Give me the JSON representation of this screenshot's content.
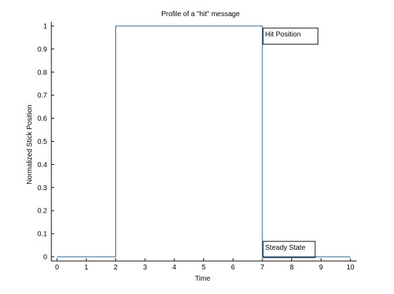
{
  "chart_data": {
    "type": "line",
    "title": "Profile of a \"hit\" message",
    "xlabel": "Time",
    "ylabel": "Normalized Stick Position",
    "xlim": [
      0,
      10
    ],
    "ylim": [
      0,
      1
    ],
    "x_ticks": [
      0,
      1,
      2,
      3,
      4,
      5,
      6,
      7,
      8,
      9,
      10
    ],
    "y_ticks": [
      0,
      0.1,
      0.2,
      0.3,
      0.4,
      0.5,
      0.6,
      0.7,
      0.8,
      0.9,
      1
    ],
    "x_tick_labels": [
      "0",
      "1",
      "2",
      "3",
      "4",
      "5",
      "6",
      "7",
      "8",
      "9",
      "10"
    ],
    "y_tick_labels": [
      "0",
      "0.1",
      "0.2",
      "0.3",
      "0.4",
      "0.5",
      "0.6",
      "0.7",
      "0.8",
      "0.9",
      "1"
    ],
    "grid": false,
    "series": [
      {
        "color": "#1f5b8f",
        "x": [
          0,
          2,
          2,
          7,
          7,
          10
        ],
        "y": [
          0,
          0,
          1,
          1,
          0,
          0
        ]
      }
    ],
    "annotations": [
      {
        "text": "Hit Position",
        "x": 7,
        "y": 1
      },
      {
        "text": "Steady State",
        "x": 7,
        "y": 0
      }
    ]
  }
}
